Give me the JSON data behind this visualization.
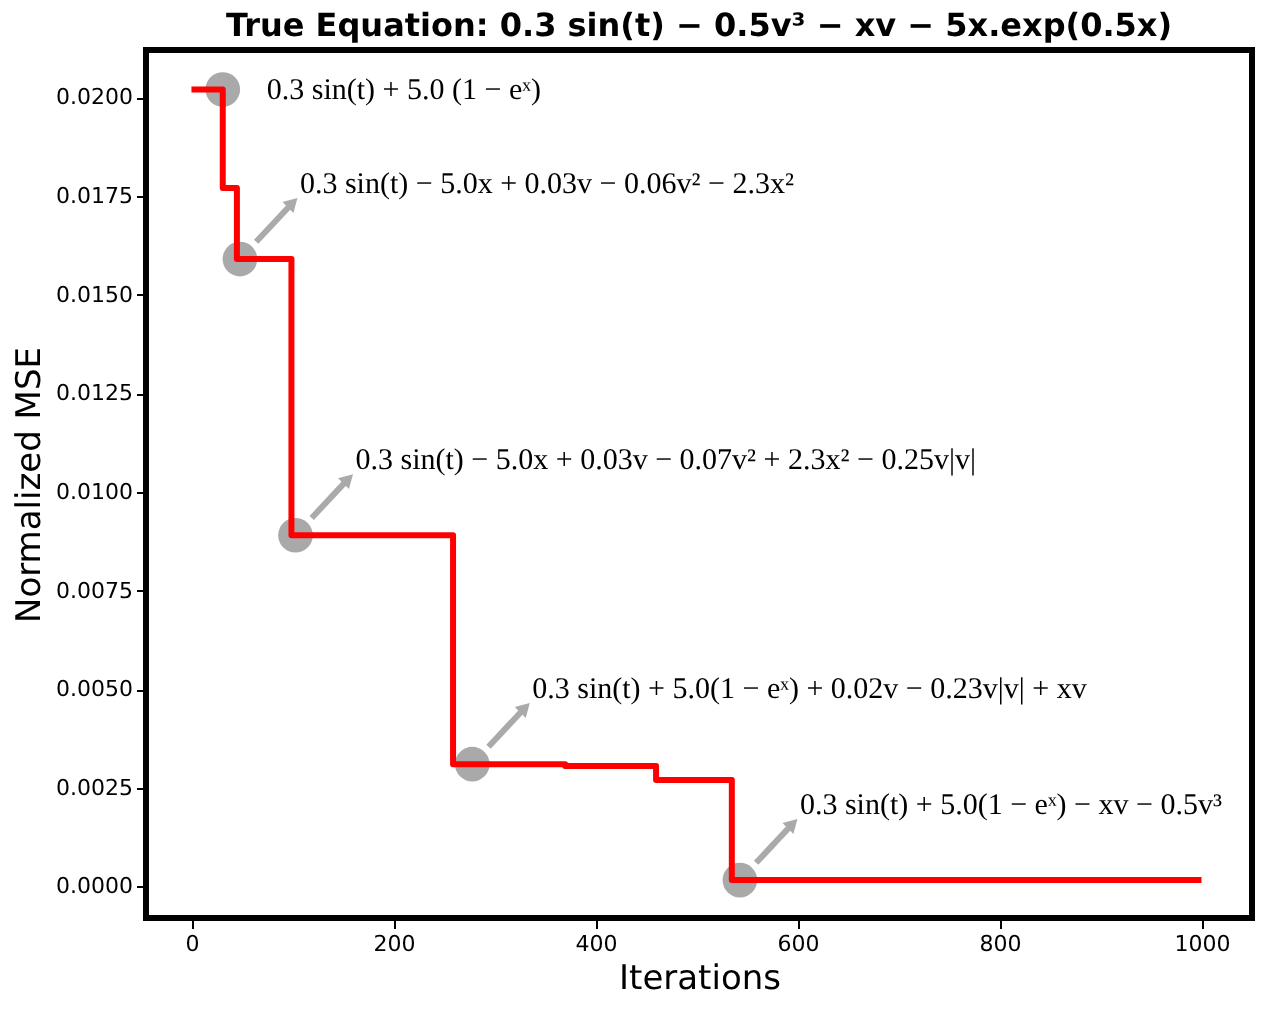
{
  "chart_data": {
    "type": "step",
    "title": "True Equation: 0.3 sin(t) − 0.5v³ − xv − 5x.exp(0.5x)",
    "xlabel": "Iterations",
    "ylabel": "Normalized MSE",
    "series": [
      {
        "color": "#ff0000",
        "x": [
          0,
          31,
          45,
          99,
          259,
          370,
          460,
          535,
          1000
        ],
        "values": [
          0.0202,
          0.0177,
          0.0159,
          0.0089,
          0.0031,
          0.00305,
          0.0027,
          0.00016,
          0.00016
        ]
      },
      {
        "type": "scatter",
        "color": "#a9a9a9",
        "marker": "circle",
        "x": [
          31,
          48,
          103,
          278,
          543
        ],
        "values": [
          0.0202,
          0.0159,
          0.0089,
          0.0031,
          0.00016
        ]
      }
    ],
    "annotations": [
      {
        "text": "0.3 sin(t) + 5.0 (1 − eˣ)",
        "x": 31,
        "y": 0.0202
      },
      {
        "text": "0.3 sin(t) − 5.0x + 0.03v − 0.06v² − 2.3x²",
        "x": 48,
        "y": 0.0159
      },
      {
        "text": "0.3 sin(t) − 5.0x + 0.03v − 0.07v² + 2.3x² − 0.25v|v|",
        "x": 103,
        "y": 0.0089
      },
      {
        "text": "0.3 sin(t) + 5.0(1 − eˣ) + 0.02v − 0.23v|v| + xv",
        "x": 278,
        "y": 0.0031
      },
      {
        "text": "0.3 sin(t) + 5.0(1 − eˣ) − xv − 0.5v³",
        "x": 543,
        "y": 0.00016
      }
    ],
    "xlim": [
      -45,
      1050
    ],
    "xticks": [
      0,
      200,
      400,
      600,
      800,
      1000
    ],
    "ylim": [
      -0.0008,
      0.0212
    ],
    "yticks": [
      {
        "value": 0,
        "label": "0.0000"
      },
      {
        "value": 0.0025,
        "label": "0.0025"
      },
      {
        "value": 0.005,
        "label": "0.0050"
      },
      {
        "value": 0.0075,
        "label": "0.0075"
      },
      {
        "value": 0.01,
        "label": "0.0100"
      },
      {
        "value": 0.0125,
        "label": "0.0125"
      },
      {
        "value": 0.015,
        "label": "0.0150"
      },
      {
        "value": 0.0175,
        "label": "0.0175"
      },
      {
        "value": 0.02,
        "label": "0.0200"
      }
    ],
    "grid": false
  }
}
